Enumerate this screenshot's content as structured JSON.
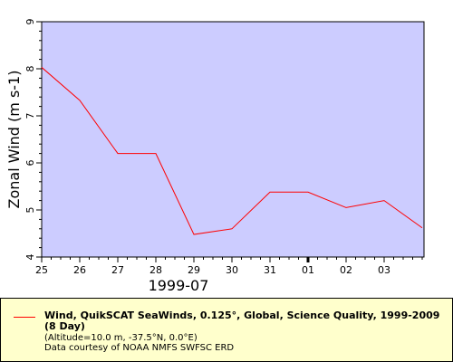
{
  "chart_data": {
    "type": "line",
    "title": "",
    "xlabel": "1999-07",
    "ylabel": "Zonal Wind (m s-1)",
    "x_tick_labels": [
      "25",
      "26",
      "27",
      "28",
      "29",
      "30",
      "31",
      "01",
      "02",
      "03"
    ],
    "y_tick_labels": [
      "4",
      "5",
      "6",
      "7",
      "8",
      "9"
    ],
    "ylim": [
      4,
      9
    ],
    "grid": false,
    "colors": {
      "plot_background": "#ccccff",
      "series_line": "#ff0000",
      "legend_background": "#ffffcc"
    },
    "series": [
      {
        "name": "Wind, QuikSCAT SeaWinds, 0.125°, Global, Science Quality, 1999-2009 (8 Day)",
        "points": [
          {
            "x": "1999-07-25",
            "y": 8.03
          },
          {
            "x": "1999-07-26",
            "y": 7.33
          },
          {
            "x": "1999-07-27",
            "y": 6.2
          },
          {
            "x": "1999-07-28",
            "y": 6.2
          },
          {
            "x": "1999-07-29",
            "y": 4.48
          },
          {
            "x": "1999-07-30",
            "y": 4.6
          },
          {
            "x": "1999-07-31",
            "y": 5.38
          },
          {
            "x": "1999-08-01",
            "y": 5.38
          },
          {
            "x": "1999-08-02",
            "y": 5.05
          },
          {
            "x": "1999-08-03",
            "y": 5.2
          },
          {
            "x": "1999-08-04",
            "y": 4.62
          }
        ]
      }
    ]
  },
  "legend": {
    "title": "Wind, QuikSCAT SeaWinds, 0.125°, Global, Science Quality, 1999-2009 (8 Day)",
    "subtitle": "(Altitude=10.0 m, -37.5°N, 0.0°E)",
    "credit": "Data courtesy of NOAA NMFS SWFSC ERD"
  }
}
